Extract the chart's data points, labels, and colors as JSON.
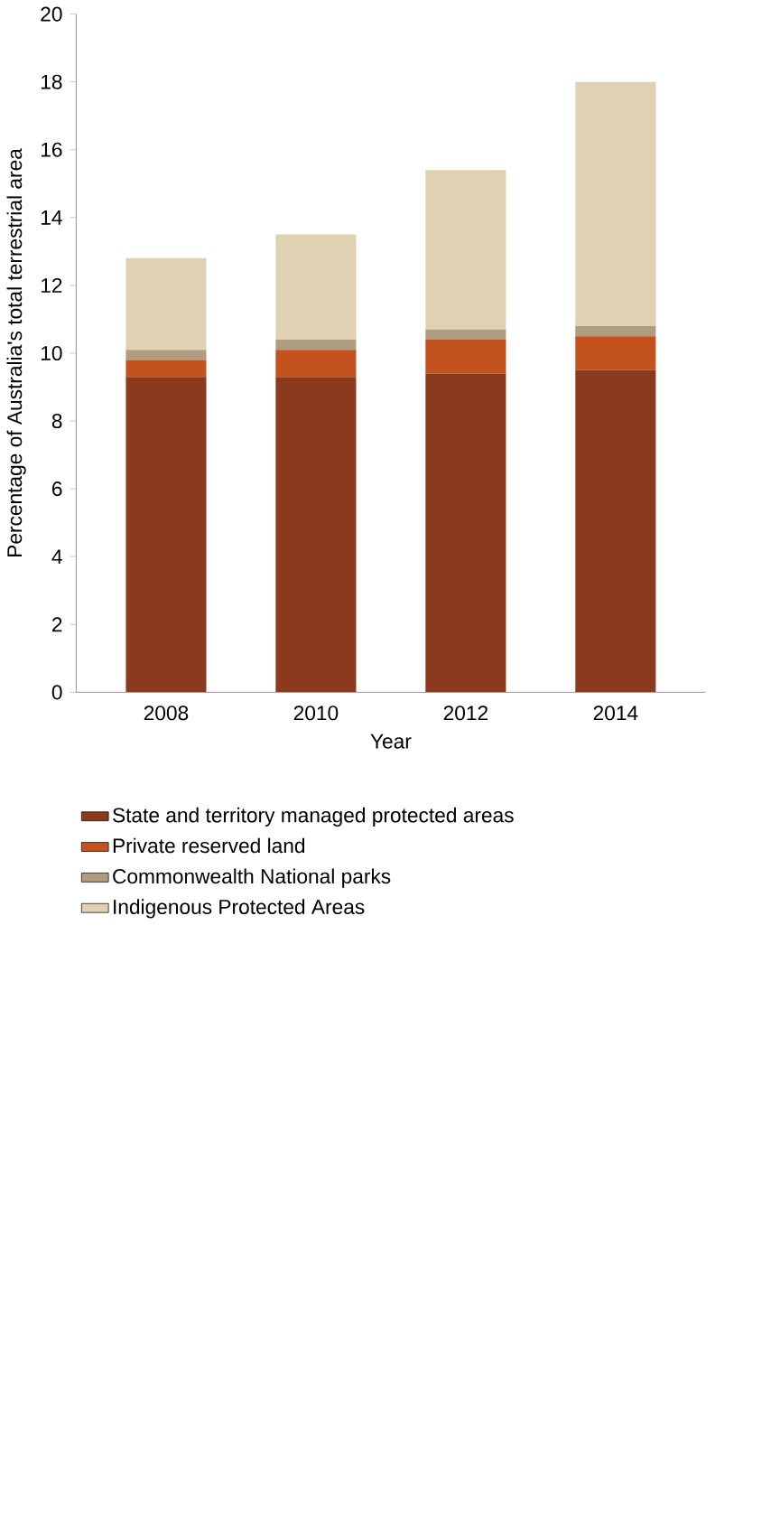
{
  "chart_data": {
    "type": "bar",
    "stacked": true,
    "xlabel": "Year",
    "ylabel": "Percentage of Australia's total terrestrial area",
    "categories": [
      "2008",
      "2010",
      "2012",
      "2014"
    ],
    "series": [
      {
        "name": "State and territory managed protected areas",
        "color": "#8b3a1e",
        "values": [
          9.3,
          9.3,
          9.4,
          9.5
        ]
      },
      {
        "name": "Private reserved land",
        "color": "#c4521f",
        "values": [
          0.5,
          0.8,
          1.0,
          1.0
        ]
      },
      {
        "name": "Commonwealth National parks",
        "color": "#b09c80",
        "values": [
          0.3,
          0.3,
          0.3,
          0.3
        ]
      },
      {
        "name": "Indigenous Protected Areas",
        "color": "#e0d1b3",
        "values": [
          2.7,
          3.1,
          4.7,
          7.2
        ]
      }
    ],
    "ylim": [
      0,
      20
    ],
    "yticks": [
      0,
      2,
      4,
      6,
      8,
      10,
      12,
      14,
      16,
      18,
      20
    ],
    "grid": false,
    "legend": "bottom"
  }
}
